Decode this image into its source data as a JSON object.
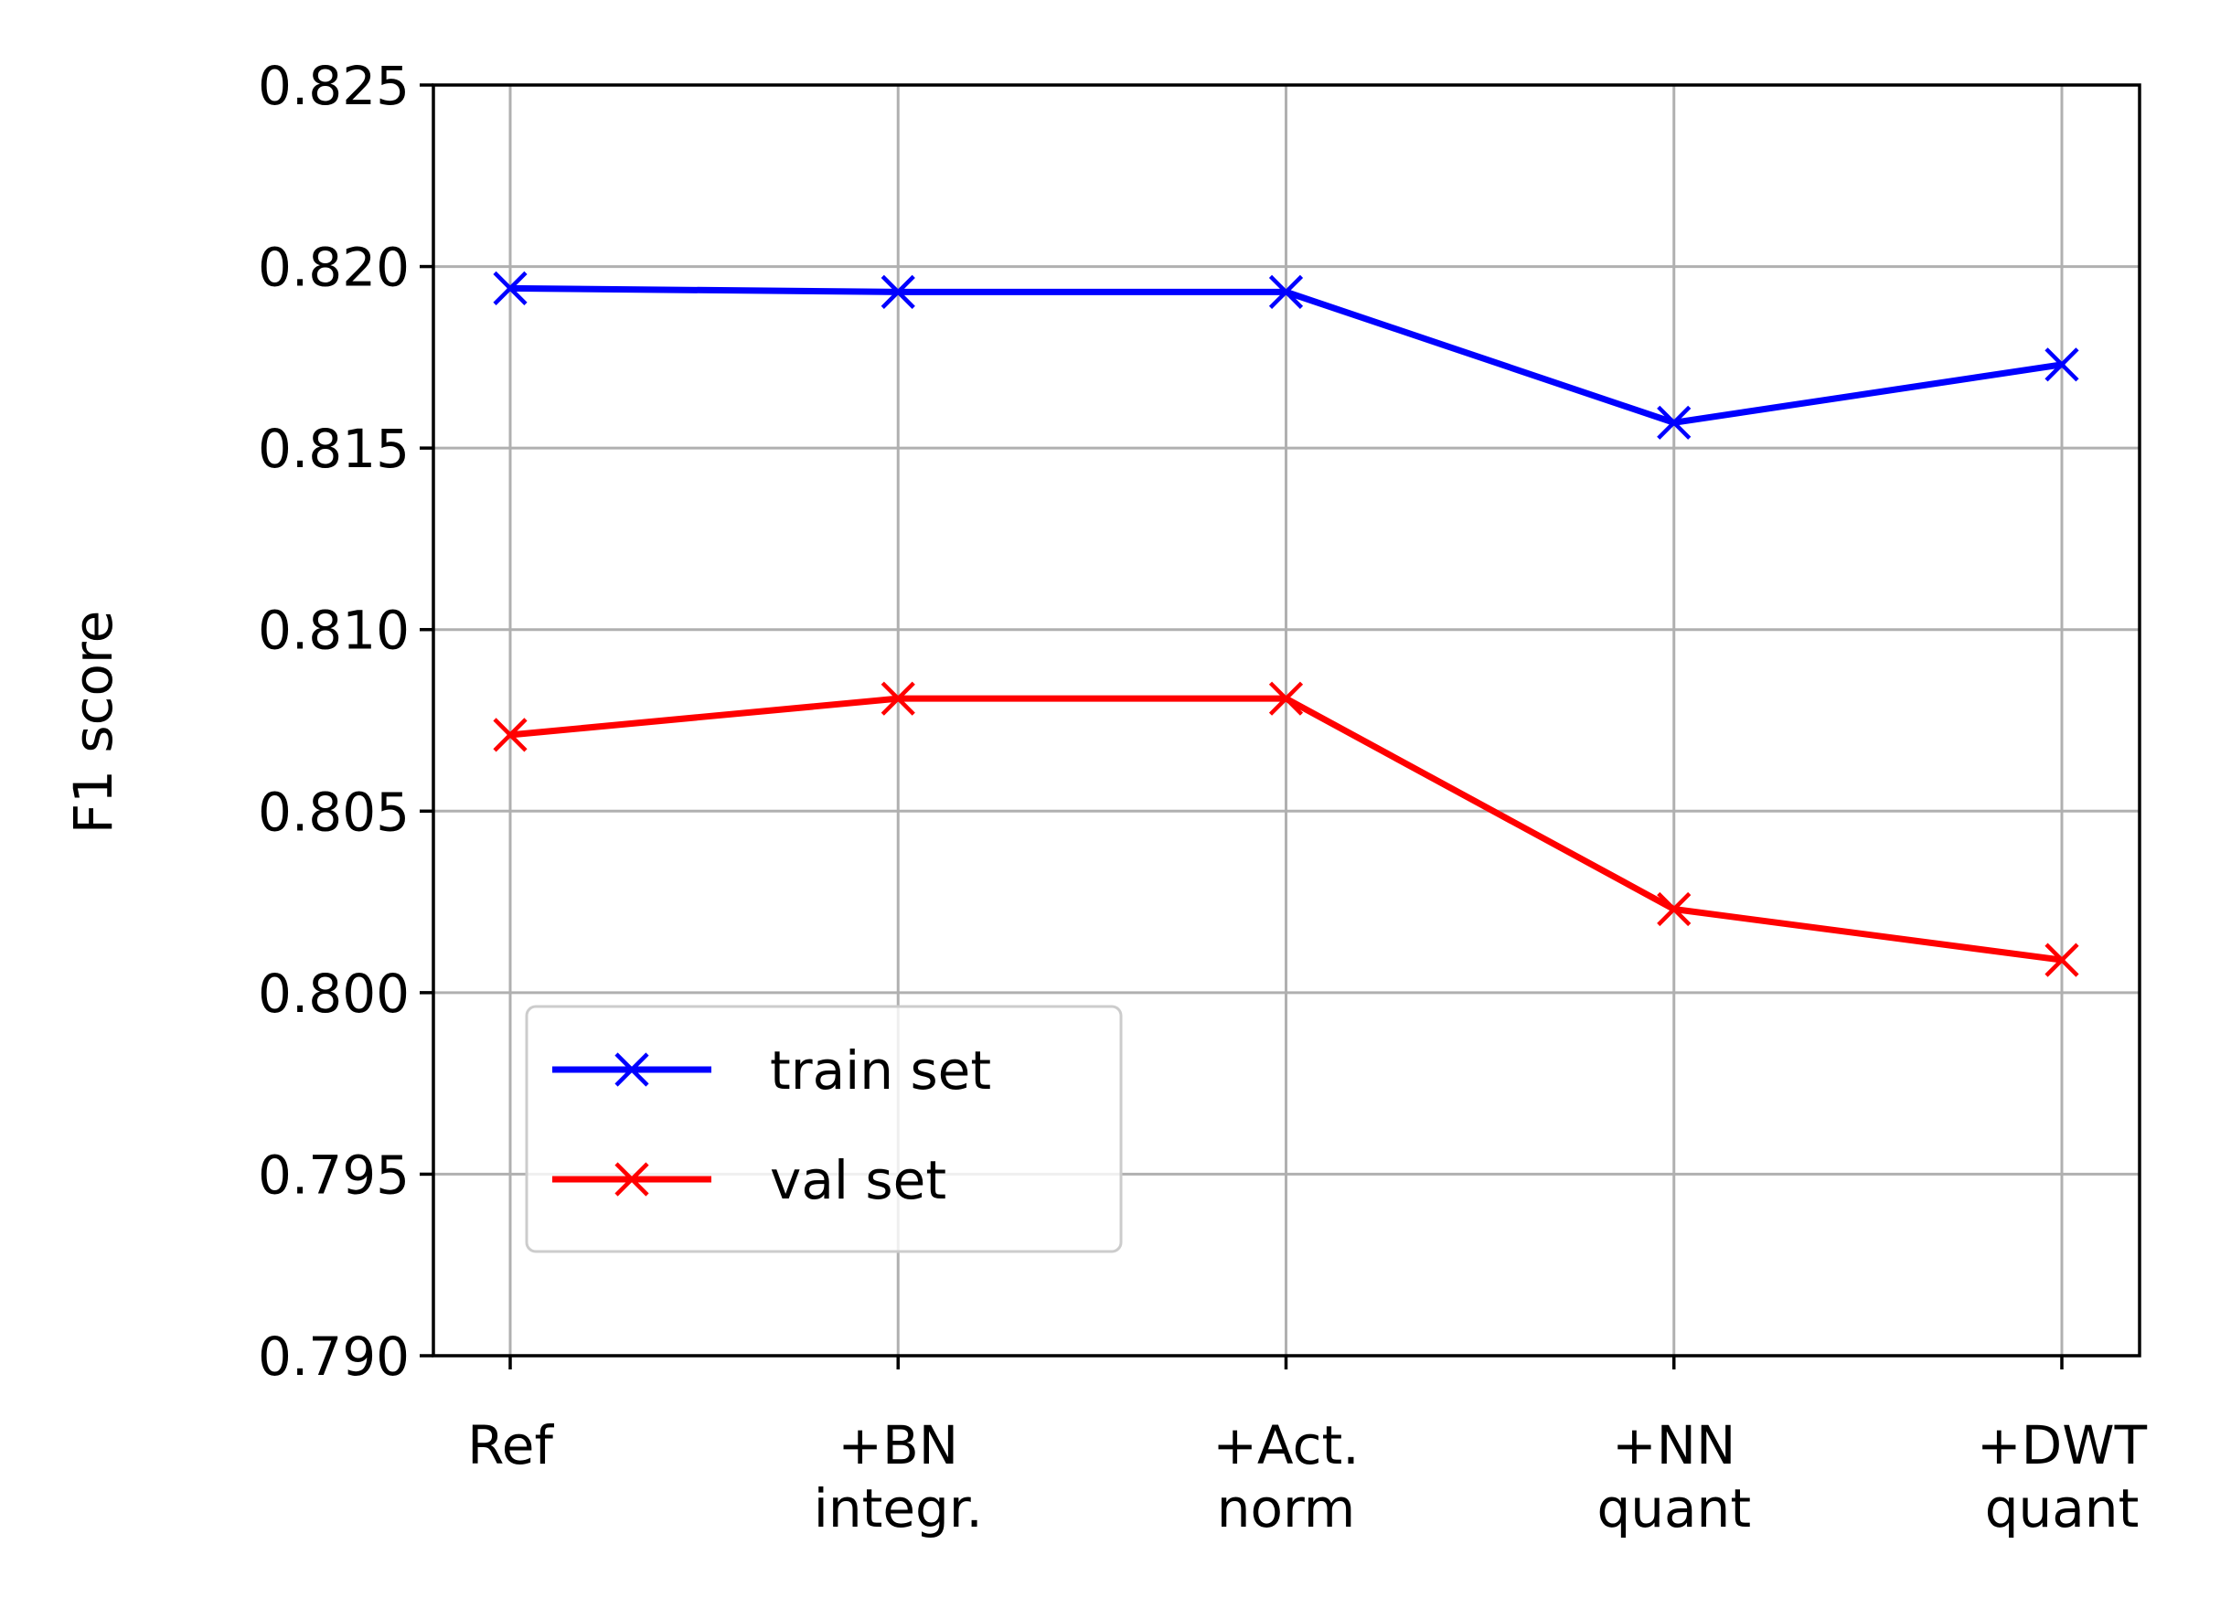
{
  "chart_data": {
    "type": "line",
    "title": "",
    "xlabel": "",
    "ylabel": "F1 score",
    "categories": [
      [
        "Ref"
      ],
      [
        "+BN",
        "integr."
      ],
      [
        "+Act.",
        "norm"
      ],
      [
        "+NN",
        "quant"
      ],
      [
        "+DWT",
        "quant"
      ]
    ],
    "ylim": [
      0.79,
      0.825
    ],
    "yticks": [
      "0.790",
      "0.795",
      "0.800",
      "0.805",
      "0.810",
      "0.815",
      "0.820",
      "0.825"
    ],
    "grid": true,
    "legend_position": "lower-left",
    "marker": "x",
    "series": [
      {
        "name": "train set",
        "color": "#0000ff",
        "values": [
          0.8194,
          0.8193,
          0.8193,
          0.8157,
          0.8173
        ]
      },
      {
        "name": "val set",
        "color": "#ff0000",
        "values": [
          0.8071,
          0.8081,
          0.8081,
          0.8023,
          0.8009
        ]
      }
    ]
  }
}
